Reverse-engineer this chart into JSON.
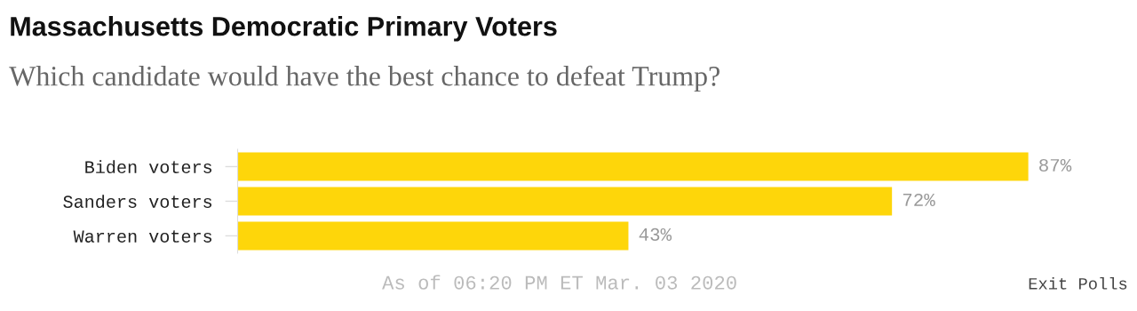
{
  "chart_data": {
    "type": "bar",
    "orientation": "horizontal",
    "title": "Massachusetts Democratic Primary Voters",
    "subtitle": "Which candidate would have the best chance to defeat Trump?",
    "categories": [
      "Biden voters",
      "Sanders voters",
      "Warren voters"
    ],
    "values": [
      87,
      72,
      43
    ],
    "value_labels": [
      "87%",
      "72%",
      "43%"
    ],
    "color": "#fed60a",
    "annotations": [
      "As of 06:20 PM ET Mar. 03 2020",
      "Exit Polls"
    ],
    "tick_labels": "y",
    "grid": false,
    "legend": false
  }
}
